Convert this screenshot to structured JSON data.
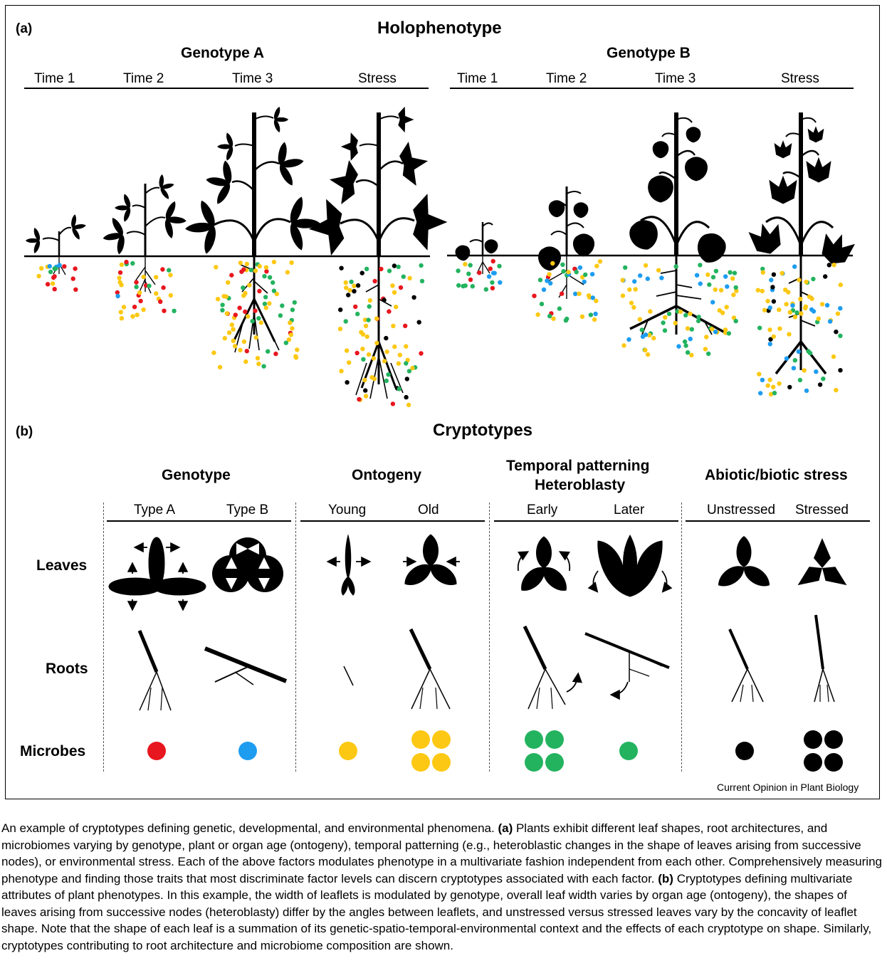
{
  "figure": {
    "panel_a_label": "(a)",
    "panel_a_title": "Holophenotype",
    "genotype_a": "Genotype A",
    "genotype_b": "Genotype B",
    "times_a": [
      "Time 1",
      "Time 2",
      "Time 3",
      "Stress"
    ],
    "times_b": [
      "Time 1",
      "Time 2",
      "Time 3",
      "Stress"
    ],
    "panel_b_label": "(b)",
    "panel_b_title": "Cryptotypes",
    "columns": [
      {
        "title": "Genotype",
        "sub": [
          "Type A",
          "Type B"
        ]
      },
      {
        "title": "Ontogeny",
        "sub": [
          "Young",
          "Old"
        ]
      },
      {
        "title_line1": "Temporal patterning",
        "title_line2": "Heteroblasty",
        "sub": [
          "Early",
          "Later"
        ]
      },
      {
        "title": "Abiotic/biotic stress",
        "sub": [
          "Unstressed",
          "Stressed"
        ]
      }
    ],
    "rows": [
      "Leaves",
      "Roots",
      "Microbes"
    ],
    "credit": "Current Opinion in Plant Biology",
    "colors": {
      "red": "#e8161e",
      "blue": "#1d9cf0",
      "yellow": "#fcc813",
      "green": "#23b35f",
      "black": "#000000"
    }
  },
  "caption": {
    "intro": "An example of cryptotypes defining genetic, developmental, and environmental phenomena. ",
    "label_a": "(a)",
    "text_a": " Plants exhibit different leaf shapes, root architectures, and microbiomes varying by genotype, plant or organ age (ontogeny), temporal patterning (e.g., heteroblastic changes in the shape of leaves arising from successive nodes), or environmental stress. Each of the above factors modulates phenotype in a multivariate fashion independent from each other. Comprehensively measuring phenotype and finding those traits that most discriminate factor levels can discern cryptotypes associated with each factor. ",
    "label_b": "(b)",
    "text_b": " Cryptotypes defining multivariate attributes of plant phenotypes. In this example, the width of leaflets is modulated by genotype, overall leaf width varies by organ age (ontogeny), the shapes of leaves arising from successive nodes (heteroblasty) differ by the angles between leaflets, and unstressed versus stressed leaves vary by the concavity of leaflet shape. Note that the shape of each leaf is a summation of its genetic-spatio-temporal-environmental context and the effects of each cryptotype on shape. Similarly, cryptotypes contributing to root architecture and microbiome composition are shown."
  }
}
